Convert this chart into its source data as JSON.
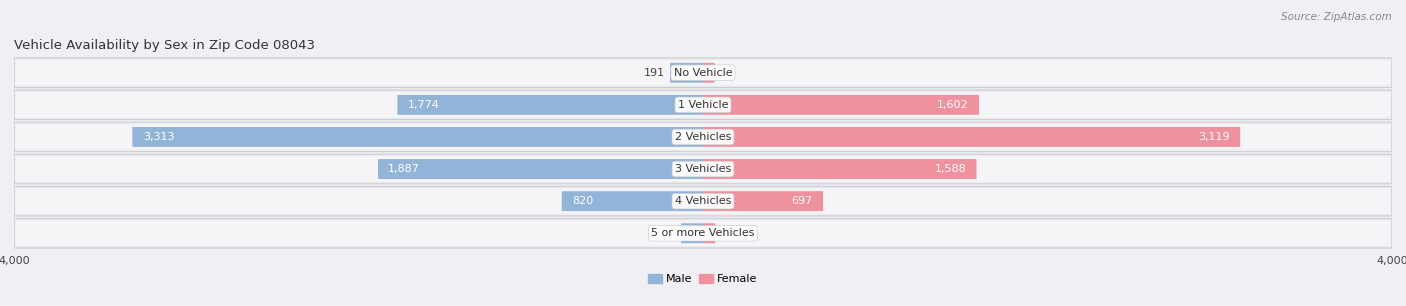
{
  "title": "Vehicle Availability by Sex in Zip Code 08043",
  "source": "Source: ZipAtlas.com",
  "categories": [
    "No Vehicle",
    "1 Vehicle",
    "2 Vehicles",
    "3 Vehicles",
    "4 Vehicles",
    "5 or more Vehicles"
  ],
  "male_values": [
    191,
    1774,
    3313,
    1887,
    820,
    127
  ],
  "female_values": [
    67,
    1602,
    3119,
    1588,
    697,
    70
  ],
  "male_color": "#92b4d8",
  "female_color": "#f0919f",
  "male_color_light": "#b8cfe8",
  "female_color_light": "#f5b8bf",
  "row_bg_color": "#e8e8ec",
  "row_inner_bg": "#f2f2f5",
  "max_value": 4000,
  "label_fontsize": 8.0,
  "title_fontsize": 9.5,
  "source_fontsize": 7.5,
  "axis_label_fontsize": 8.0,
  "background_color": "#f0f0f4"
}
